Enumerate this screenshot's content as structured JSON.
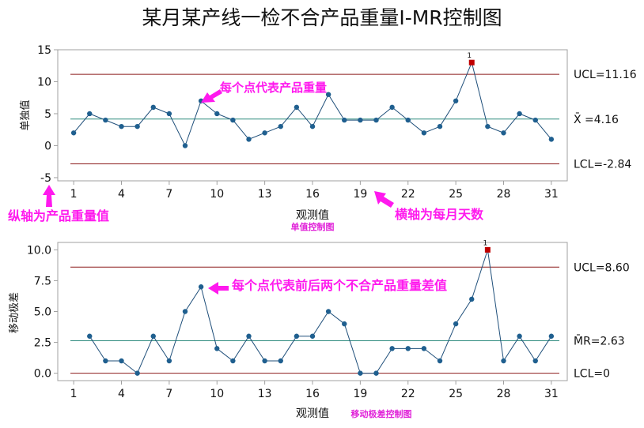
{
  "title": "某月某产线一检不合产品重量I-MR控制图",
  "colors": {
    "frame": "#a0a0a0",
    "series": "#1f4f7a",
    "marker": "#1f5f8f",
    "out_of_control": "#c00000",
    "control_limit": "#8b1a1a",
    "center_line": "#2e8b7f",
    "annotation": "#ff19ee"
  },
  "annotations": {
    "i_point": "每个点代表产品重量",
    "y_axis_note": "纵轴为产品重量值",
    "x_axis_note": "横轴为每月天数",
    "mr_point": "每个点代表前后两个不合产品重量差值"
  },
  "chart_data": [
    {
      "type": "line",
      "name": "单值控制图",
      "subtitle": "单值控制图",
      "xlabel": "观测值",
      "ylabel": "单独值",
      "x": [
        1,
        2,
        3,
        4,
        5,
        6,
        7,
        8,
        9,
        10,
        11,
        12,
        13,
        14,
        15,
        16,
        17,
        18,
        19,
        20,
        21,
        22,
        23,
        24,
        25,
        26,
        27,
        28,
        29,
        30,
        31
      ],
      "values": [
        2,
        5,
        4,
        3,
        3,
        6,
        5,
        0,
        7,
        5,
        4,
        1,
        2,
        3,
        6,
        3,
        8,
        4,
        4,
        4,
        6,
        4,
        2,
        3,
        7,
        13,
        3,
        2,
        5,
        4,
        1
      ],
      "out_of_control": [
        {
          "x": 26,
          "y": 13,
          "label": "1"
        }
      ],
      "x_ticks": [
        "1",
        "4",
        "7",
        "10",
        "13",
        "16",
        "19",
        "22",
        "25",
        "28",
        "31"
      ],
      "y_ticks": [
        "-5",
        "0",
        "5",
        "10",
        "15"
      ],
      "ylim": [
        -5.5,
        15
      ],
      "xlim": [
        0,
        32
      ],
      "control_limits": {
        "ucl": {
          "value": 11.16,
          "label": "UCL=11.16"
        },
        "center": {
          "value": 4.16,
          "label": "X̄ =4.16"
        },
        "lcl": {
          "value": -2.84,
          "label": "LCL=-2.84"
        }
      }
    },
    {
      "type": "line",
      "name": "移动极差控制图",
      "subtitle": "移动极差控制图",
      "xlabel": "观测值",
      "ylabel": "移动极差",
      "x": [
        2,
        3,
        4,
        5,
        6,
        7,
        8,
        9,
        10,
        11,
        12,
        13,
        14,
        15,
        16,
        17,
        18,
        19,
        20,
        21,
        22,
        23,
        24,
        25,
        26,
        27,
        28,
        29,
        30,
        31
      ],
      "values": [
        3,
        1,
        1,
        0,
        3,
        1,
        5,
        7,
        2,
        1,
        3,
        1,
        1,
        3,
        3,
        5,
        4,
        0,
        0,
        2,
        2,
        2,
        1,
        4,
        6,
        10,
        1,
        3,
        1,
        3
      ],
      "out_of_control": [
        {
          "x": 27,
          "y": 10,
          "label": "1"
        }
      ],
      "x_ticks": [
        "1",
        "4",
        "7",
        "10",
        "13",
        "16",
        "19",
        "22",
        "25",
        "28",
        "31"
      ],
      "y_ticks": [
        "0.0",
        "2.5",
        "5.0",
        "7.5",
        "10.0"
      ],
      "ylim": [
        -0.6,
        10.6
      ],
      "xlim": [
        0,
        32
      ],
      "control_limits": {
        "ucl": {
          "value": 8.6,
          "label": "UCL=8.60"
        },
        "center": {
          "value": 2.63,
          "label": "M̄R=2.63"
        },
        "lcl": {
          "value": 0,
          "label": "LCL=0"
        }
      }
    }
  ]
}
